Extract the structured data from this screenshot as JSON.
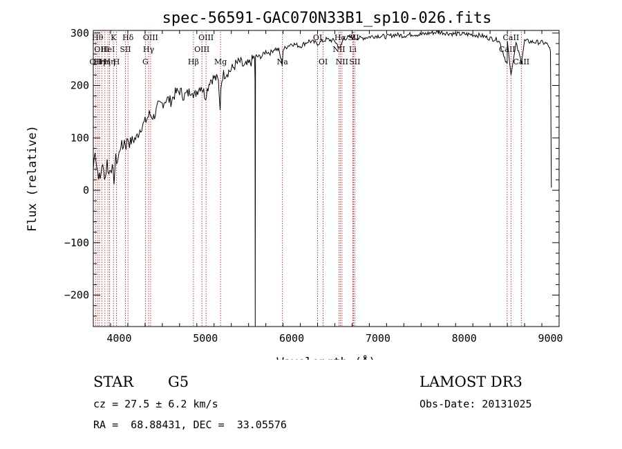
{
  "chart_data": {
    "type": "line",
    "title": "spec-56591-GAC070N33B1_sp10-026.fits",
    "xlabel": "Wavelength (Å)",
    "ylabel": "Flux (relative)",
    "xlim": [
      3700,
      9100
    ],
    "ylim": [
      -260,
      305
    ],
    "x_ticks": [
      4000,
      5000,
      6000,
      7000,
      8000,
      9000
    ],
    "y_ticks": [
      -200,
      -100,
      0,
      100,
      200,
      300
    ],
    "grid": false,
    "line_color": "#000000",
    "marker_color": "#cc0000",
    "series": [
      {
        "x": [
          3700,
          3720,
          3740,
          3760,
          3780,
          3800,
          3820,
          3840,
          3860,
          3880,
          3900,
          3920,
          3940,
          3960,
          3980,
          4000,
          4020,
          4040,
          4060,
          4080,
          4100,
          4120,
          4150,
          4200,
          4250,
          4300,
          4350,
          4400,
          4450,
          4500,
          4550,
          4600,
          4650,
          4700,
          4750,
          4800,
          4850,
          4860,
          4900,
          4950,
          5000,
          5050,
          5100,
          5150,
          5170,
          5180,
          5200,
          5250,
          5300,
          5350,
          5400,
          5450,
          5500,
          5550,
          5570,
          5575,
          5577,
          5580,
          5600,
          5650,
          5700,
          5750,
          5800,
          5850,
          5890,
          5900,
          5950,
          6000,
          6100,
          6200,
          6300,
          6400,
          6500,
          6560,
          6600,
          6700,
          6800,
          6900,
          7000,
          7100,
          7200,
          7300,
          7400,
          7500,
          7600,
          7700,
          7800,
          7900,
          8000,
          8100,
          8200,
          8300,
          8400,
          8498,
          8500,
          8542,
          8600,
          8662,
          8700,
          8800,
          8900,
          8950,
          8980,
          9000,
          9010
        ],
        "y": [
          40,
          80,
          45,
          30,
          20,
          50,
          35,
          25,
          55,
          30,
          45,
          40,
          20,
          60,
          55,
          70,
          90,
          80,
          95,
          85,
          100,
          90,
          95,
          100,
          120,
          130,
          145,
          140,
          160,
          165,
          175,
          170,
          185,
          190,
          180,
          185,
          195,
          175,
          190,
          200,
          180,
          210,
          215,
          210,
          150,
          200,
          220,
          225,
          230,
          240,
          245,
          235,
          240,
          250,
          255,
          210,
          -260,
          250,
          255,
          255,
          265,
          262,
          270,
          268,
          240,
          268,
          275,
          280,
          275,
          285,
          280,
          288,
          285,
          270,
          290,
          292,
          290,
          293,
          295,
          293,
          297,
          295,
          298,
          297,
          300,
          302,
          300,
          298,
          298,
          297,
          295,
          290,
          287,
          240,
          285,
          220,
          280,
          245,
          285,
          283,
          282,
          280,
          275,
          265,
          5
        ]
      }
    ],
    "line_markers": [
      {
        "wl": 3727,
        "label": "OII",
        "row": 2
      },
      {
        "wl": 3750,
        "label": "Hθ",
        "row": 0
      },
      {
        "wl": 3771,
        "label": "Hη",
        "row": 2
      },
      {
        "wl": 3798,
        "label": "OIII",
        "row": 1
      },
      {
        "wl": 3835,
        "label": "Hη",
        "row": 2
      },
      {
        "wl": 3869,
        "label": "HeI",
        "row": 1
      },
      {
        "wl": 3889,
        "label": "Hη",
        "row": 2
      },
      {
        "wl": 3934,
        "label": "K",
        "row": 0
      },
      {
        "wl": 3969,
        "label": "H",
        "row": 2
      },
      {
        "wl": 4072,
        "label": "SII",
        "row": 1
      },
      {
        "wl": 4102,
        "label": "Hδ",
        "row": 0
      },
      {
        "wl": 4304,
        "label": "G",
        "row": 2
      },
      {
        "wl": 4341,
        "label": "Hγ",
        "row": 1
      },
      {
        "wl": 4364,
        "label": "OIII",
        "row": 0
      },
      {
        "wl": 4861,
        "label": "Hβ",
        "row": 2
      },
      {
        "wl": 4959,
        "label": "OIII",
        "row": 1
      },
      {
        "wl": 5007,
        "label": "OIII",
        "row": 0
      },
      {
        "wl": 5175,
        "label": "Mg",
        "row": 2
      },
      {
        "wl": 5893,
        "label": "Na",
        "row": 2
      },
      {
        "wl": 6300,
        "label": "OI",
        "row": 0
      },
      {
        "wl": 6364,
        "label": "OI",
        "row": 2
      },
      {
        "wl": 6548,
        "label": "NII",
        "row": 1
      },
      {
        "wl": 6563,
        "label": "Hα",
        "row": 0
      },
      {
        "wl": 6583,
        "label": "NII",
        "row": 2
      },
      {
        "wl": 6708,
        "label": "Li",
        "row": 1
      },
      {
        "wl": 6716,
        "label": "SII",
        "row": 0
      },
      {
        "wl": 6731,
        "label": "SII",
        "row": 2
      },
      {
        "wl": 8498,
        "label": "CaII",
        "row": 1
      },
      {
        "wl": 8542,
        "label": "CaII",
        "row": 0
      },
      {
        "wl": 8662,
        "label": "CaII",
        "row": 2
      }
    ]
  },
  "info": {
    "class_label": "STAR",
    "subclass_label": "G5",
    "survey": "LAMOST DR3",
    "cz": "cz = 27.5 ± 6.2 km/s",
    "obs_date": "Obs-Date: 20131025",
    "radec": "RA =  68.88431, DEC =  33.05576"
  }
}
